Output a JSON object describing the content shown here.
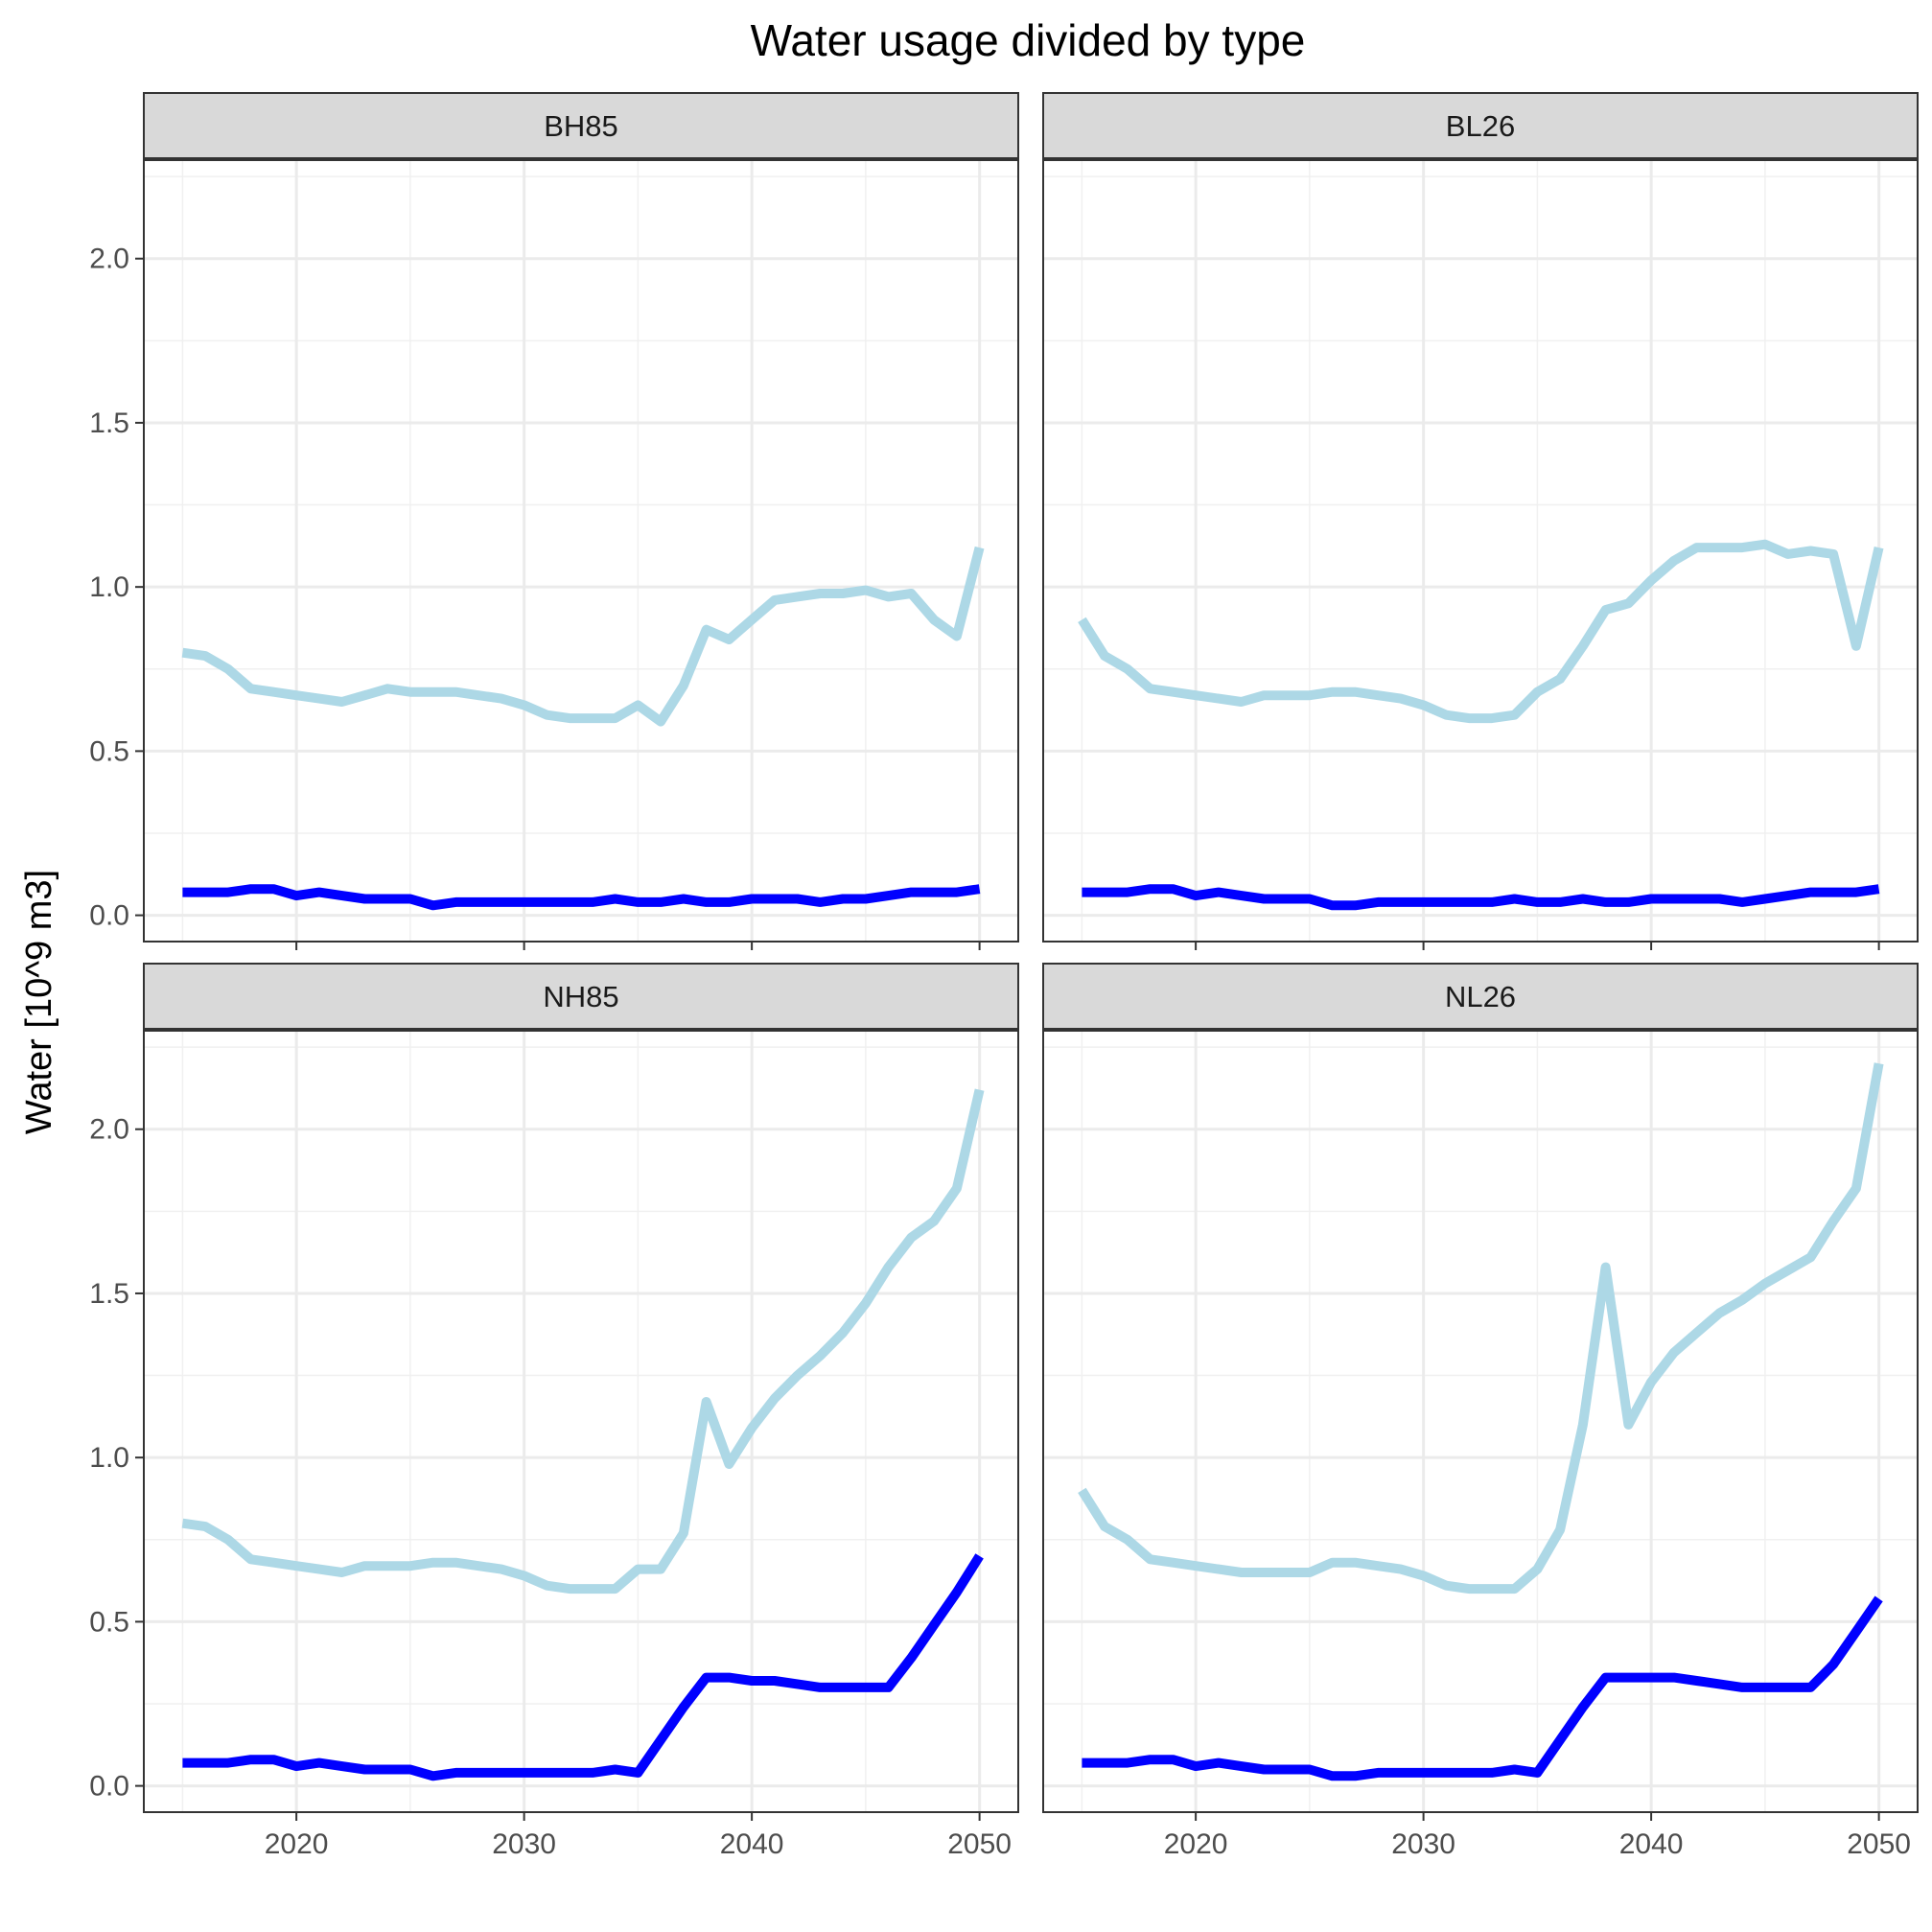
{
  "chart_data": {
    "type": "line",
    "title": "Water usage divided by type",
    "ylabel": "Water [10^9 m3]",
    "xlabel": "",
    "xlim": [
      2013.3,
      2051.7
    ],
    "ylim": [
      -0.08,
      2.3
    ],
    "x_ticks": [
      2020,
      2030,
      2040,
      2050
    ],
    "y_ticks": [
      0.0,
      0.5,
      1.0,
      1.5,
      2.0
    ],
    "y_tick_labels": [
      "0.0",
      "0.5",
      "1.0",
      "1.5",
      "2.0"
    ],
    "grid": true,
    "legend": "none",
    "x": [
      2015,
      2016,
      2017,
      2018,
      2019,
      2020,
      2021,
      2022,
      2023,
      2024,
      2025,
      2026,
      2027,
      2028,
      2029,
      2030,
      2031,
      2032,
      2033,
      2034,
      2035,
      2036,
      2037,
      2038,
      2039,
      2040,
      2041,
      2042,
      2043,
      2044,
      2045,
      2046,
      2047,
      2048,
      2049,
      2050
    ],
    "series_colors": [
      "#add8e6",
      "#0000ff"
    ],
    "panels": [
      {
        "label": "BH85",
        "series": [
          {
            "color": "#add8e6",
            "values": [
              0.8,
              0.79,
              0.75,
              0.69,
              0.68,
              0.67,
              0.66,
              0.65,
              0.67,
              0.69,
              0.68,
              0.68,
              0.68,
              0.67,
              0.66,
              0.64,
              0.61,
              0.6,
              0.6,
              0.6,
              0.64,
              0.59,
              0.7,
              0.87,
              0.84,
              0.9,
              0.96,
              0.97,
              0.98,
              0.98,
              0.99,
              0.97,
              0.98,
              0.9,
              0.85,
              1.12
            ]
          },
          {
            "color": "#0000ff",
            "values": [
              0.07,
              0.07,
              0.07,
              0.08,
              0.08,
              0.06,
              0.07,
              0.06,
              0.05,
              0.05,
              0.05,
              0.03,
              0.04,
              0.04,
              0.04,
              0.04,
              0.04,
              0.04,
              0.04,
              0.05,
              0.04,
              0.04,
              0.05,
              0.04,
              0.04,
              0.05,
              0.05,
              0.05,
              0.04,
              0.05,
              0.05,
              0.06,
              0.07,
              0.07,
              0.07,
              0.08
            ]
          }
        ]
      },
      {
        "label": "BL26",
        "series": [
          {
            "color": "#add8e6",
            "values": [
              0.9,
              0.79,
              0.75,
              0.69,
              0.68,
              0.67,
              0.66,
              0.65,
              0.67,
              0.67,
              0.67,
              0.68,
              0.68,
              0.67,
              0.66,
              0.64,
              0.61,
              0.6,
              0.6,
              0.61,
              0.68,
              0.72,
              0.82,
              0.93,
              0.95,
              1.02,
              1.08,
              1.12,
              1.12,
              1.12,
              1.13,
              1.1,
              1.11,
              1.1,
              0.82,
              1.12
            ]
          },
          {
            "color": "#0000ff",
            "values": [
              0.07,
              0.07,
              0.07,
              0.08,
              0.08,
              0.06,
              0.07,
              0.06,
              0.05,
              0.05,
              0.05,
              0.03,
              0.03,
              0.04,
              0.04,
              0.04,
              0.04,
              0.04,
              0.04,
              0.05,
              0.04,
              0.04,
              0.05,
              0.04,
              0.04,
              0.05,
              0.05,
              0.05,
              0.05,
              0.04,
              0.05,
              0.06,
              0.07,
              0.07,
              0.07,
              0.08
            ]
          }
        ]
      },
      {
        "label": "NH85",
        "series": [
          {
            "color": "#add8e6",
            "values": [
              0.8,
              0.79,
              0.75,
              0.69,
              0.68,
              0.67,
              0.66,
              0.65,
              0.67,
              0.67,
              0.67,
              0.68,
              0.68,
              0.67,
              0.66,
              0.64,
              0.61,
              0.6,
              0.6,
              0.6,
              0.66,
              0.66,
              0.77,
              1.17,
              0.98,
              1.09,
              1.18,
              1.25,
              1.31,
              1.38,
              1.47,
              1.58,
              1.67,
              1.72,
              1.82,
              2.12
            ]
          },
          {
            "color": "#0000ff",
            "values": [
              0.07,
              0.07,
              0.07,
              0.08,
              0.08,
              0.06,
              0.07,
              0.06,
              0.05,
              0.05,
              0.05,
              0.03,
              0.04,
              0.04,
              0.04,
              0.04,
              0.04,
              0.04,
              0.04,
              0.05,
              0.04,
              0.14,
              0.24,
              0.33,
              0.33,
              0.32,
              0.32,
              0.31,
              0.3,
              0.3,
              0.3,
              0.3,
              0.39,
              0.49,
              0.59,
              0.7
            ]
          }
        ]
      },
      {
        "label": "NL26",
        "series": [
          {
            "color": "#add8e6",
            "values": [
              0.9,
              0.79,
              0.75,
              0.69,
              0.68,
              0.67,
              0.66,
              0.65,
              0.65,
              0.65,
              0.65,
              0.68,
              0.68,
              0.67,
              0.66,
              0.64,
              0.61,
              0.6,
              0.6,
              0.6,
              0.66,
              0.78,
              1.1,
              1.58,
              1.1,
              1.23,
              1.32,
              1.38,
              1.44,
              1.48,
              1.53,
              1.57,
              1.61,
              1.72,
              1.82,
              2.2
            ]
          },
          {
            "color": "#0000ff",
            "values": [
              0.07,
              0.07,
              0.07,
              0.08,
              0.08,
              0.06,
              0.07,
              0.06,
              0.05,
              0.05,
              0.05,
              0.03,
              0.03,
              0.04,
              0.04,
              0.04,
              0.04,
              0.04,
              0.04,
              0.05,
              0.04,
              0.14,
              0.24,
              0.33,
              0.33,
              0.33,
              0.33,
              0.32,
              0.31,
              0.3,
              0.3,
              0.3,
              0.3,
              0.37,
              0.47,
              0.57
            ]
          }
        ]
      }
    ]
  }
}
